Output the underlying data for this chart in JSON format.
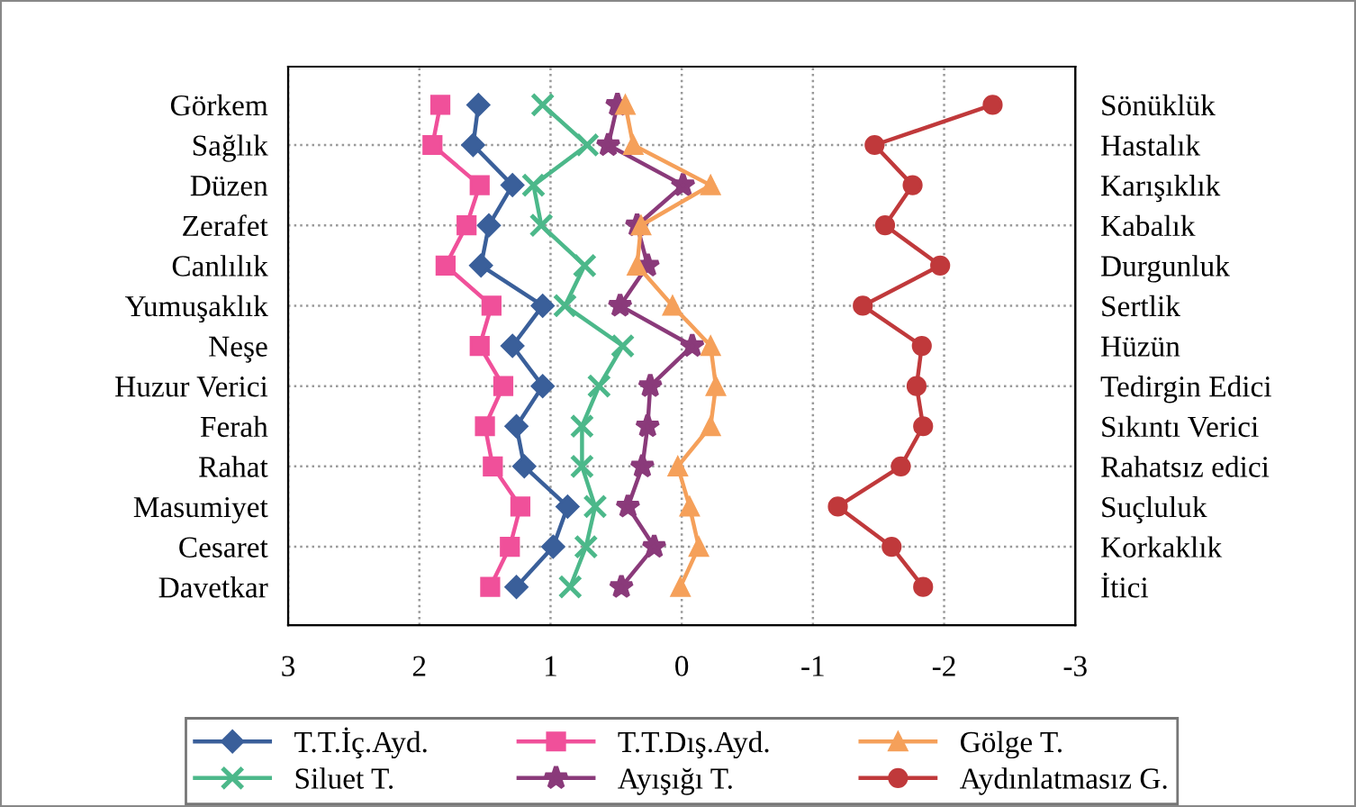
{
  "chart_data": {
    "type": "line",
    "orientation": "horizontal",
    "categories": [
      "Görkem",
      "Sağlık",
      "Düzen",
      "Zerafet",
      "Canlılık",
      "Yumuşaklık",
      "Neşe",
      "Huzur Verici",
      "Ferah",
      "Rahat",
      "Masumiyet",
      "Cesaret",
      "Davetkar"
    ],
    "y2_categories": [
      "Sönüklük",
      "Hastalık",
      "Karışıklık",
      "Kabalık",
      "Durgunluk",
      "Sertlik",
      "Hüzün",
      "Tedirgin Edici",
      "Sıkıntı Verici",
      "Rahatsız edici",
      "Suçluluk",
      "Korkaklık",
      "İtici"
    ],
    "xlim": [
      3,
      -3
    ],
    "xticks": [
      3,
      2,
      1,
      0,
      -1,
      -2,
      -3
    ],
    "grid": true,
    "legend": "bottom",
    "line_style": "solid",
    "series": [
      {
        "name": "T.T.İç.Ayd.",
        "color": "#3a5f9a",
        "marker": "diamond",
        "values": [
          1.55,
          1.59,
          1.29,
          1.47,
          1.53,
          1.06,
          1.29,
          1.06,
          1.26,
          1.2,
          0.87,
          0.98,
          1.26
        ]
      },
      {
        "name": "T.T.Dış.Ayd.",
        "color": "#f0509a",
        "marker": "square",
        "values": [
          1.84,
          1.9,
          1.54,
          1.64,
          1.8,
          1.45,
          1.54,
          1.36,
          1.5,
          1.44,
          1.23,
          1.31,
          1.46
        ]
      },
      {
        "name": "Gölge T.",
        "color": "#f5a05a",
        "marker": "triangle",
        "values": [
          0.43,
          0.37,
          -0.22,
          0.31,
          0.34,
          0.07,
          -0.22,
          -0.26,
          -0.22,
          0.03,
          -0.06,
          -0.13,
          0.01
        ]
      },
      {
        "name": "Siluet T.",
        "color": "#4cb88a",
        "marker": "cross",
        "values": [
          1.06,
          0.72,
          1.13,
          1.07,
          0.74,
          0.89,
          0.45,
          0.63,
          0.76,
          0.76,
          0.66,
          0.73,
          0.85
        ]
      },
      {
        "name": "Ayışığı T.",
        "color": "#8a3a7a",
        "marker": "star",
        "values": [
          0.49,
          0.56,
          -0.01,
          0.34,
          0.26,
          0.47,
          -0.08,
          0.24,
          0.26,
          0.3,
          0.41,
          0.21,
          0.46
        ]
      },
      {
        "name": "Aydınlatmasız G.",
        "color": "#c0393b",
        "marker": "circle",
        "values": [
          -2.37,
          -1.47,
          -1.76,
          -1.55,
          -1.97,
          -1.38,
          -1.83,
          -1.79,
          -1.84,
          -1.67,
          -1.19,
          -1.6,
          -1.84
        ]
      }
    ]
  }
}
